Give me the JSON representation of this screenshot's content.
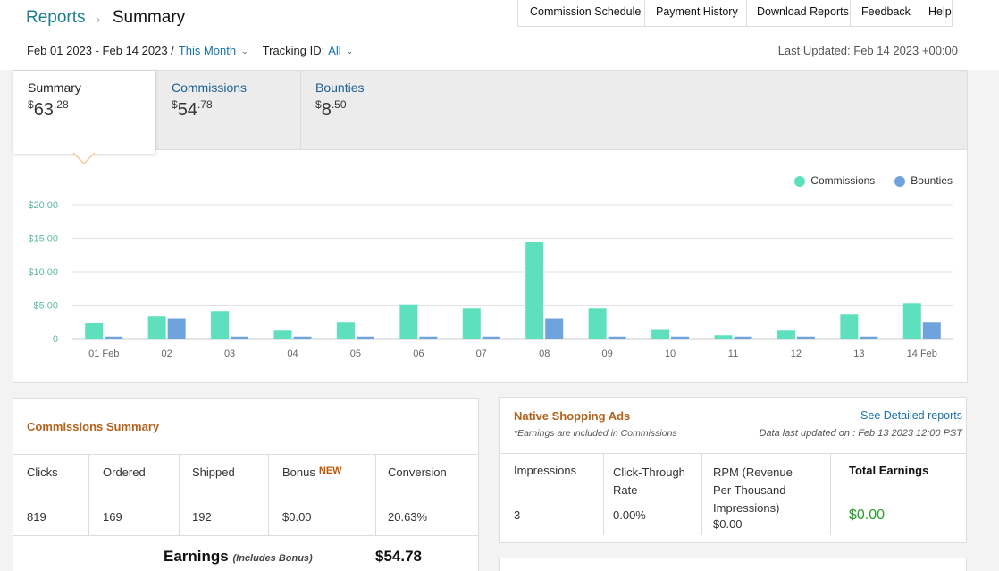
{
  "breadcrumb": {
    "parent": "Reports",
    "separator": "›",
    "current": "Summary"
  },
  "topnav": [
    "Commission Schedule",
    "Payment History",
    "Download Reports",
    "Feedback",
    "Help"
  ],
  "filters": {
    "date_range": "Feb 01 2023 - Feb 14 2023 /",
    "period": "This Month",
    "tracking_label": "Tracking ID:",
    "tracking_value": "All"
  },
  "last_updated": "Last Updated: Feb 14 2023 +00:00",
  "tabs": [
    {
      "label": "Summary",
      "currency": "$",
      "whole": "63",
      "cents": ".28"
    },
    {
      "label": "Commissions",
      "currency": "$",
      "whole": "54",
      "cents": ".78"
    },
    {
      "label": "Bounties",
      "currency": "$",
      "whole": "8",
      "cents": ".50"
    }
  ],
  "colors": {
    "commissions": "#5ee0bf",
    "bounties": "#6fa3dd",
    "caret": "#f5c88a",
    "orange_heading": "#b5621b",
    "green_value": "#2a9d2a"
  },
  "chart_data": {
    "type": "bar",
    "categories": [
      "01 Feb",
      "02",
      "03",
      "04",
      "05",
      "06",
      "07",
      "08",
      "09",
      "10",
      "11",
      "12",
      "13",
      "14 Feb"
    ],
    "series": [
      {
        "name": "Commissions",
        "values": [
          2.4,
          3.3,
          4.1,
          1.3,
          2.5,
          5.1,
          4.5,
          14.4,
          4.5,
          1.4,
          0.5,
          1.3,
          3.7,
          5.3
        ]
      },
      {
        "name": "Bounties",
        "values": [
          0.3,
          3.0,
          0.3,
          0.3,
          0.3,
          0.3,
          0.3,
          3.0,
          0.3,
          0.3,
          0.3,
          0.3,
          0.3,
          2.5
        ]
      }
    ],
    "ylim": [
      0,
      20
    ],
    "yticks": [
      0,
      5,
      10,
      15,
      20
    ],
    "ytick_labels": [
      "0",
      "$5.00",
      "$10.00",
      "$15.00",
      "$20.00"
    ],
    "grid": true,
    "legend": "top-right"
  },
  "commissions_summary": {
    "title": "Commissions Summary",
    "columns": [
      {
        "label": "Clicks",
        "value": "819"
      },
      {
        "label": "Ordered",
        "value": "169"
      },
      {
        "label": "Shipped",
        "value": "192"
      },
      {
        "label": "Bonus",
        "value": "$0.00",
        "badge": "NEW"
      },
      {
        "label": "Conversion",
        "value": "20.63%"
      }
    ],
    "earnings_label": "Earnings",
    "earnings_note": "(Includes Bonus)",
    "earnings_value": "$54.78"
  },
  "native_ads": {
    "title": "Native Shopping Ads",
    "note": "*Earnings are included in Commissions",
    "link": "See Detailed reports",
    "updated": "Data last updated on : Feb 13 2023 12:00 PST",
    "columns": [
      {
        "label": "Impressions",
        "value": "3"
      },
      {
        "label": "Click-Through Rate",
        "value": "0.00%"
      },
      {
        "label": "RPM (Revenue Per Thousand Impressions)",
        "value": "$0.00"
      },
      {
        "label": "Total Earnings",
        "value": "$0.00"
      }
    ]
  }
}
